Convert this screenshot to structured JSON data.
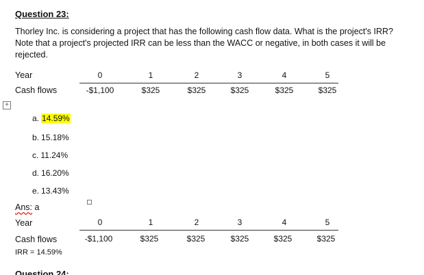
{
  "question": {
    "title": "Question 23:",
    "text": "Thorley Inc. is considering a project that has the following cash flow data. What is the project's IRR? Note that a project's projected IRR can be less than the WACC or negative, in both cases it will be rejected."
  },
  "table1": {
    "year_label": "Year",
    "cashflow_label": "Cash flows",
    "years": [
      "0",
      "1",
      "2",
      "3",
      "4",
      "5"
    ],
    "cash_flows": [
      "-$1,100",
      "$325",
      "$325",
      "$325",
      "$325",
      "$325"
    ]
  },
  "choices": [
    {
      "letter": "a.",
      "value": "14.59%",
      "highlighted": true
    },
    {
      "letter": "b.",
      "value": "15.18%",
      "highlighted": false
    },
    {
      "letter": "c.",
      "value": "11.24%",
      "highlighted": false
    },
    {
      "letter": "d.",
      "value": "16.20%",
      "highlighted": false
    },
    {
      "letter": "e.",
      "value": "13.43%",
      "highlighted": false
    }
  ],
  "answer": {
    "prefix": "Ans:",
    "key": "a"
  },
  "table2": {
    "year_label": "Year",
    "cashflow_label": "Cash flows",
    "years": [
      "0",
      "1",
      "2",
      "3",
      "4",
      "5"
    ],
    "cash_flows": [
      "-$1,100",
      "$325",
      "$325",
      "$325",
      "$325",
      "$325"
    ],
    "irr": "IRR = 14.59%"
  },
  "next_question_partial": "Question 24:",
  "colors": {
    "highlight": "#ffff00",
    "text": "#111111"
  }
}
